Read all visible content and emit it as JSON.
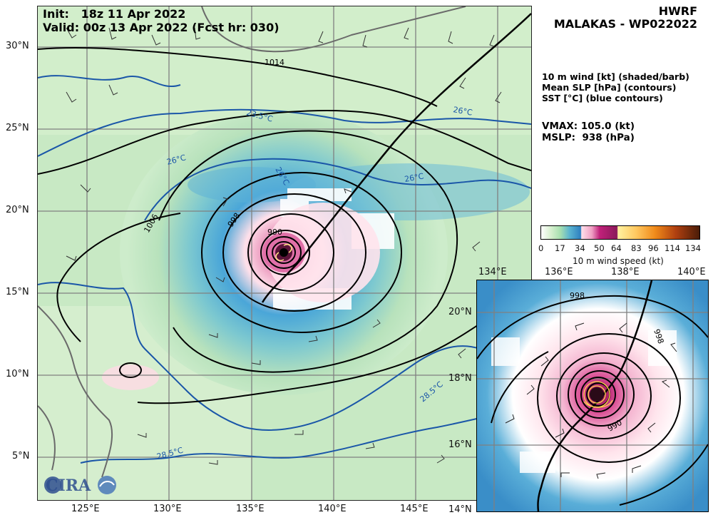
{
  "header": {
    "init_line": "Init:   18z 11 Apr 2022",
    "valid_line": "Valid: 00z 13 Apr 2022 (Fcst hr: 030)"
  },
  "title": {
    "model": "HWRF",
    "storm": "MALAKAS - WP022022"
  },
  "legend_text": {
    "line1": "10 m wind [kt] (shaded/barb)",
    "line2": "Mean SLP [hPa] (contours)",
    "line3": "SST [°C] (blue contours)"
  },
  "stats": {
    "vmax": "VMAX: 105.0 (kt)",
    "mslp": "MSLP:  938 (hPa)"
  },
  "colorbar": {
    "label": "10 m wind speed (kt)",
    "ticks": [
      "0",
      "17",
      "34",
      "50",
      "64",
      "83",
      "96",
      "114",
      "134"
    ],
    "colors": [
      "#ffffff",
      "#a8e0b0",
      "#2e8fd0",
      "#ffd9e6",
      "#c0207a",
      "#ffe680",
      "#f08a1a",
      "#b04010",
      "#4a1c08"
    ]
  },
  "main_map": {
    "lon_ticks": [
      "125°E",
      "130°E",
      "135°E",
      "140°E",
      "145°E"
    ],
    "lat_ticks": [
      "30°N",
      "25°N",
      "20°N",
      "15°N",
      "10°N",
      "5°N"
    ],
    "contour_labels": [
      "1014",
      "1006",
      "998",
      "990",
      "26°C",
      "23.5°C",
      "26°C",
      "26°C",
      "28.5°C",
      "28.5°C",
      "26°C"
    ]
  },
  "inset_map": {
    "lon_ticks_top": [
      "134°E",
      "136°E",
      "138°E",
      "140°E"
    ],
    "lat_ticks": [
      "20°N",
      "18°N",
      "16°N",
      "14°N"
    ],
    "contour_labels": [
      "998",
      "990",
      "998"
    ]
  },
  "logo": {
    "text": "CIRA"
  }
}
